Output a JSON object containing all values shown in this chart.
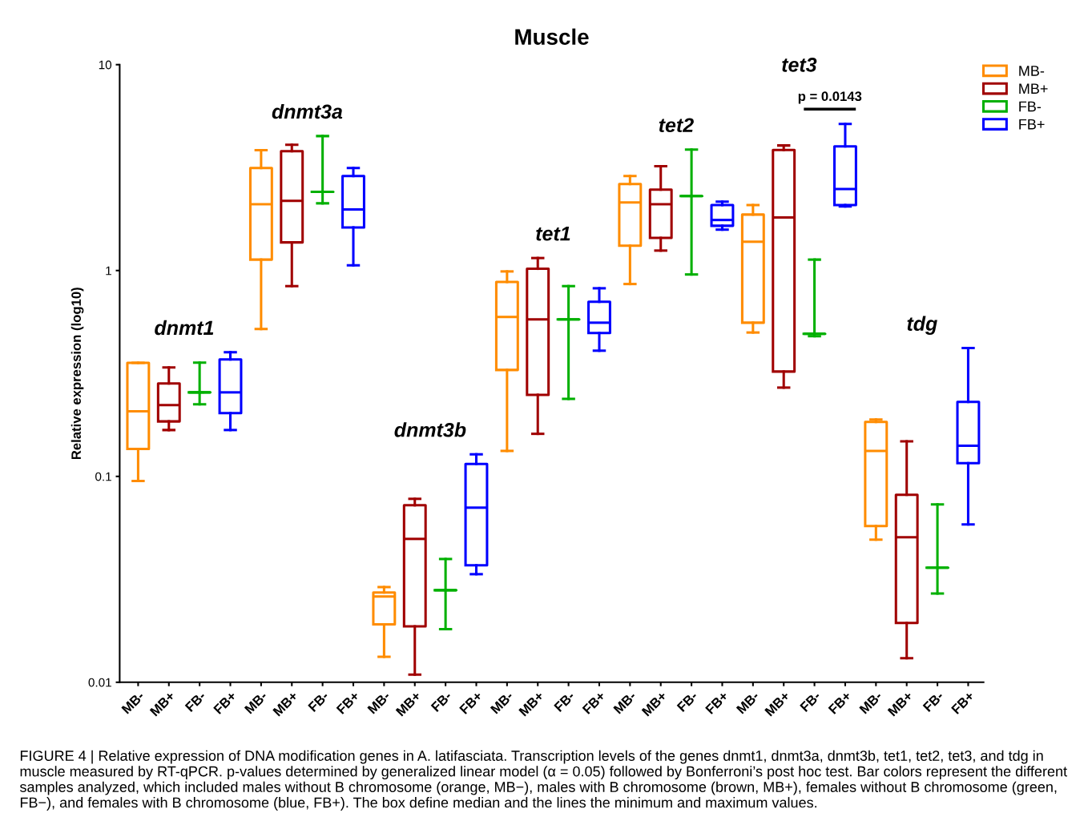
{
  "chart_data": {
    "type": "box",
    "title": "Muscle",
    "ylabel": "Relative expression (log10)",
    "log": true,
    "ylim": [
      0.01,
      10
    ],
    "yticks": [
      0.01,
      0.1,
      1,
      10
    ],
    "grid": false,
    "legend": "top right",
    "categories": [
      "MB-",
      "MB+",
      "FB-",
      "FB+",
      "MB-",
      "MB+",
      "FB-",
      "FB+",
      "MB-",
      "MB+",
      "FB-",
      "FB+",
      "MB-",
      "MB+",
      "FB-",
      "FB+",
      "MB-",
      "MB+",
      "FB-",
      "FB+",
      "MB-",
      "MB+",
      "FB-",
      "FB+",
      "MB-",
      "MB+",
      "FB-",
      "FB+"
    ],
    "series": [
      {
        "name": "MB-",
        "color": "#ff8c00",
        "boxes": [
          {
            "low": 0.095,
            "q1": 0.136,
            "median": 0.207,
            "q3": 0.356,
            "high": 0.356
          },
          null,
          null,
          null,
          {
            "low": 0.52,
            "q1": 1.13,
            "median": 2.1,
            "q3": 3.15,
            "high": 3.84
          },
          null,
          null,
          null,
          {
            "low": 0.0133,
            "q1": 0.0191,
            "median": 0.0261,
            "q3": 0.0273,
            "high": 0.029
          },
          null,
          null,
          null,
          {
            "low": 0.133,
            "q1": 0.329,
            "median": 0.595,
            "q3": 0.88,
            "high": 0.99
          },
          null,
          null,
          null,
          {
            "low": 0.86,
            "q1": 1.32,
            "median": 2.14,
            "q3": 2.63,
            "high": 2.88
          },
          null,
          null,
          null,
          {
            "low": 0.5,
            "q1": 0.558,
            "median": 1.38,
            "q3": 1.87,
            "high": 2.08
          },
          null,
          null,
          null,
          {
            "low": 0.0493,
            "q1": 0.0574,
            "median": 0.133,
            "q3": 0.184,
            "high": 0.189
          },
          null,
          null,
          null
        ]
      },
      {
        "name": "MB+",
        "color": "#a00000",
        "boxes": [
          null,
          {
            "low": 0.168,
            "q1": 0.185,
            "median": 0.222,
            "q3": 0.283,
            "high": 0.338
          },
          null,
          null,
          null,
          {
            "low": 0.84,
            "q1": 1.37,
            "median": 2.18,
            "q3": 3.8,
            "high": 4.08
          },
          null,
          null,
          null,
          {
            "low": 0.0109,
            "q1": 0.0187,
            "median": 0.0497,
            "q3": 0.0724,
            "high": 0.0778
          },
          null,
          null,
          null,
          {
            "low": 0.161,
            "q1": 0.249,
            "median": 0.579,
            "q3": 1.02,
            "high": 1.15
          },
          null,
          null,
          null,
          {
            "low": 1.25,
            "q1": 1.44,
            "median": 2.1,
            "q3": 2.47,
            "high": 3.21
          },
          null,
          null,
          null,
          {
            "low": 0.27,
            "q1": 0.323,
            "median": 1.81,
            "q3": 3.85,
            "high": 4.05
          },
          null,
          null,
          null,
          {
            "low": 0.0131,
            "q1": 0.0194,
            "median": 0.0506,
            "q3": 0.0814,
            "high": 0.148
          },
          null,
          null
        ]
      },
      {
        "name": "FB-",
        "color": "#00b000",
        "boxes": [
          null,
          null,
          {
            "low": 0.224,
            "q1": 0.256,
            "median": 0.256,
            "q3": 0.256,
            "high": 0.357
          },
          null,
          null,
          null,
          {
            "low": 2.12,
            "q1": 2.41,
            "median": 2.41,
            "q3": 2.41,
            "high": 4.5
          },
          null,
          null,
          null,
          {
            "low": 0.0181,
            "q1": 0.028,
            "median": 0.028,
            "q3": 0.028,
            "high": 0.0397
          },
          null,
          null,
          null,
          {
            "low": 0.238,
            "q1": 0.579,
            "median": 0.579,
            "q3": 0.579,
            "high": 0.84
          },
          null,
          null,
          null,
          {
            "low": 0.957,
            "q1": 2.3,
            "median": 2.3,
            "q3": 2.3,
            "high": 3.87
          },
          null,
          null,
          null,
          {
            "low": 0.48,
            "q1": 0.493,
            "median": 0.493,
            "q3": 0.493,
            "high": 1.13
          },
          null,
          null,
          null,
          {
            "low": 0.027,
            "q1": 0.036,
            "median": 0.036,
            "q3": 0.036,
            "high": 0.0731
          },
          null
        ]
      },
      {
        "name": "FB+",
        "color": "#0000ff",
        "boxes": [
          null,
          null,
          null,
          {
            "low": 0.168,
            "q1": 0.203,
            "median": 0.256,
            "q3": 0.37,
            "high": 0.401
          },
          null,
          null,
          null,
          {
            "low": 1.06,
            "q1": 1.62,
            "median": 1.98,
            "q3": 2.88,
            "high": 3.15
          },
          null,
          null,
          null,
          {
            "low": 0.0335,
            "q1": 0.037,
            "median": 0.0705,
            "q3": 0.115,
            "high": 0.128
          },
          null,
          null,
          null,
          {
            "low": 0.408,
            "q1": 0.497,
            "median": 0.558,
            "q3": 0.705,
            "high": 0.82
          },
          null,
          null,
          null,
          {
            "low": 1.58,
            "q1": 1.65,
            "median": 1.76,
            "q3": 2.08,
            "high": 2.16
          },
          null,
          null,
          null,
          {
            "low": 2.05,
            "q1": 2.08,
            "median": 2.49,
            "q3": 4.01,
            "high": 5.15
          },
          null,
          null,
          null,
          {
            "low": 0.0584,
            "q1": 0.116,
            "median": 0.141,
            "q3": 0.23,
            "high": 0.42
          }
        ]
      }
    ],
    "annotations": [
      "dnmt1",
      "dnmt3a",
      "dnmt3b",
      "tet1",
      "tet2",
      "tet3",
      "tdg",
      "p = 0.0143",
      "FIGURE 4 | Relative expression of DNA modification genes in A. latifasciata. Transcription levels of the genes dnmt1, dnmt3a, dnmt3b, tet1, tet2, tet3, and tdg in muscle measured by RT-qPCR. p-values determined by generalized linear model (α = 0.05) followed by Bonferroni’s post hoc test. Bar colors represent the different samples analyzed, which included males without B chromosome (orange, MB−), males with B chromosome (brown, MB+), females without B chromosome (green, FB−), and females with B chromosome (blue, FB+). The box define median and the lines the minimum and maximum values."
    ]
  }
}
